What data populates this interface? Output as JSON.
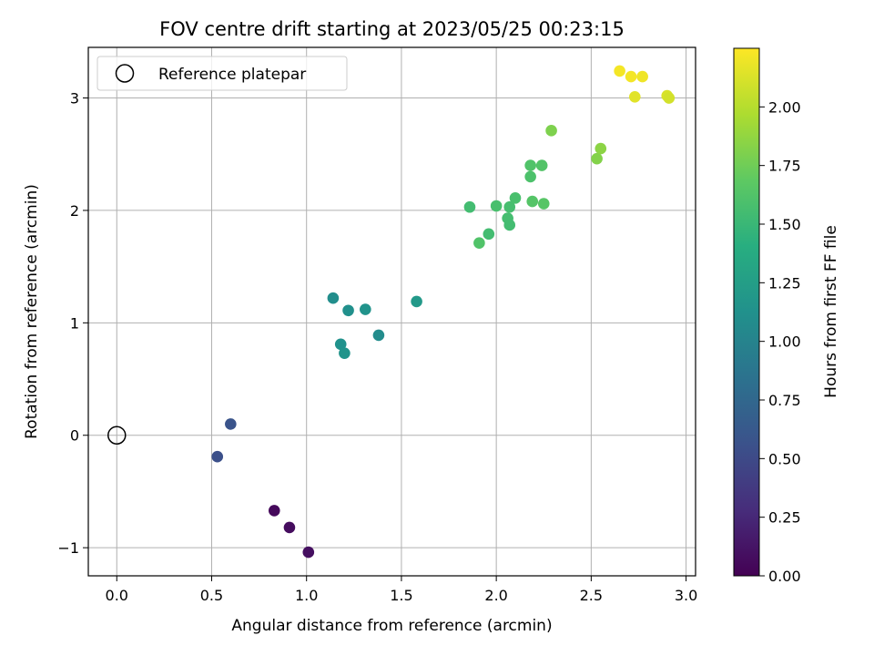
{
  "chart_data": {
    "type": "scatter",
    "title": "FOV centre drift starting at 2023/05/25 00:23:15",
    "xlabel": "Angular distance from reference (arcmin)",
    "ylabel": "Rotation from reference (arcmin)",
    "xlim": [
      -0.15,
      3.05
    ],
    "ylim": [
      -1.25,
      3.45
    ],
    "xticks": [
      0.0,
      0.5,
      1.0,
      1.5,
      2.0,
      2.5,
      3.0
    ],
    "xtick_labels": [
      "0.0",
      "0.5",
      "1.0",
      "1.5",
      "2.0",
      "2.5",
      "3.0"
    ],
    "yticks": [
      -1,
      0,
      1,
      2,
      3
    ],
    "ytick_labels": [
      "−1",
      "0",
      "1",
      "2",
      "3"
    ],
    "grid": true,
    "legend": {
      "placement": "top-left",
      "entries": [
        {
          "label": "Reference platepar",
          "marker": "open-circle",
          "color": "#000000"
        }
      ],
      "reference_point": {
        "x": 0.0,
        "y": 0.0
      }
    },
    "colorbar": {
      "label": "Hours from first FF file",
      "colormap": "viridis",
      "range": [
        0.0,
        2.25
      ],
      "ticks": [
        0.0,
        0.25,
        0.5,
        0.75,
        1.0,
        1.25,
        1.5,
        1.75,
        2.0
      ],
      "tick_labels": [
        "0.00",
        "0.25",
        "0.50",
        "0.75",
        "1.00",
        "1.25",
        "1.50",
        "1.75",
        "2.00"
      ]
    },
    "points": [
      {
        "x": 0.83,
        "y": -0.67,
        "c": 0.05
      },
      {
        "x": 0.91,
        "y": -0.82,
        "c": 0.07
      },
      {
        "x": 1.01,
        "y": -1.04,
        "c": 0.09
      },
      {
        "x": 0.53,
        "y": -0.19,
        "c": 0.55
      },
      {
        "x": 0.6,
        "y": 0.1,
        "c": 0.58
      },
      {
        "x": 1.14,
        "y": 1.22,
        "c": 1.1
      },
      {
        "x": 1.22,
        "y": 1.11,
        "c": 1.12
      },
      {
        "x": 1.31,
        "y": 1.12,
        "c": 1.14
      },
      {
        "x": 1.18,
        "y": 0.81,
        "c": 1.13
      },
      {
        "x": 1.2,
        "y": 0.73,
        "c": 1.15
      },
      {
        "x": 1.38,
        "y": 0.89,
        "c": 1.08
      },
      {
        "x": 1.58,
        "y": 1.19,
        "c": 1.2
      },
      {
        "x": 1.86,
        "y": 2.03,
        "c": 1.55
      },
      {
        "x": 1.91,
        "y": 1.71,
        "c": 1.62
      },
      {
        "x": 1.96,
        "y": 1.79,
        "c": 1.55
      },
      {
        "x": 2.0,
        "y": 2.04,
        "c": 1.58
      },
      {
        "x": 2.07,
        "y": 2.03,
        "c": 1.57
      },
      {
        "x": 2.06,
        "y": 1.93,
        "c": 1.56
      },
      {
        "x": 2.07,
        "y": 1.87,
        "c": 1.55
      },
      {
        "x": 2.1,
        "y": 2.11,
        "c": 1.58
      },
      {
        "x": 2.18,
        "y": 2.3,
        "c": 1.6
      },
      {
        "x": 2.18,
        "y": 2.4,
        "c": 1.62
      },
      {
        "x": 2.19,
        "y": 2.08,
        "c": 1.64
      },
      {
        "x": 2.24,
        "y": 2.4,
        "c": 1.63
      },
      {
        "x": 2.25,
        "y": 2.06,
        "c": 1.65
      },
      {
        "x": 2.29,
        "y": 2.71,
        "c": 1.8
      },
      {
        "x": 2.53,
        "y": 2.46,
        "c": 1.82
      },
      {
        "x": 2.55,
        "y": 2.55,
        "c": 1.85
      },
      {
        "x": 2.65,
        "y": 3.24,
        "c": 2.22
      },
      {
        "x": 2.71,
        "y": 3.19,
        "c": 2.22
      },
      {
        "x": 2.77,
        "y": 3.19,
        "c": 2.2
      },
      {
        "x": 2.73,
        "y": 3.01,
        "c": 2.15
      },
      {
        "x": 2.9,
        "y": 3.02,
        "c": 2.12
      },
      {
        "x": 2.91,
        "y": 3.0,
        "c": 2.1
      }
    ]
  }
}
